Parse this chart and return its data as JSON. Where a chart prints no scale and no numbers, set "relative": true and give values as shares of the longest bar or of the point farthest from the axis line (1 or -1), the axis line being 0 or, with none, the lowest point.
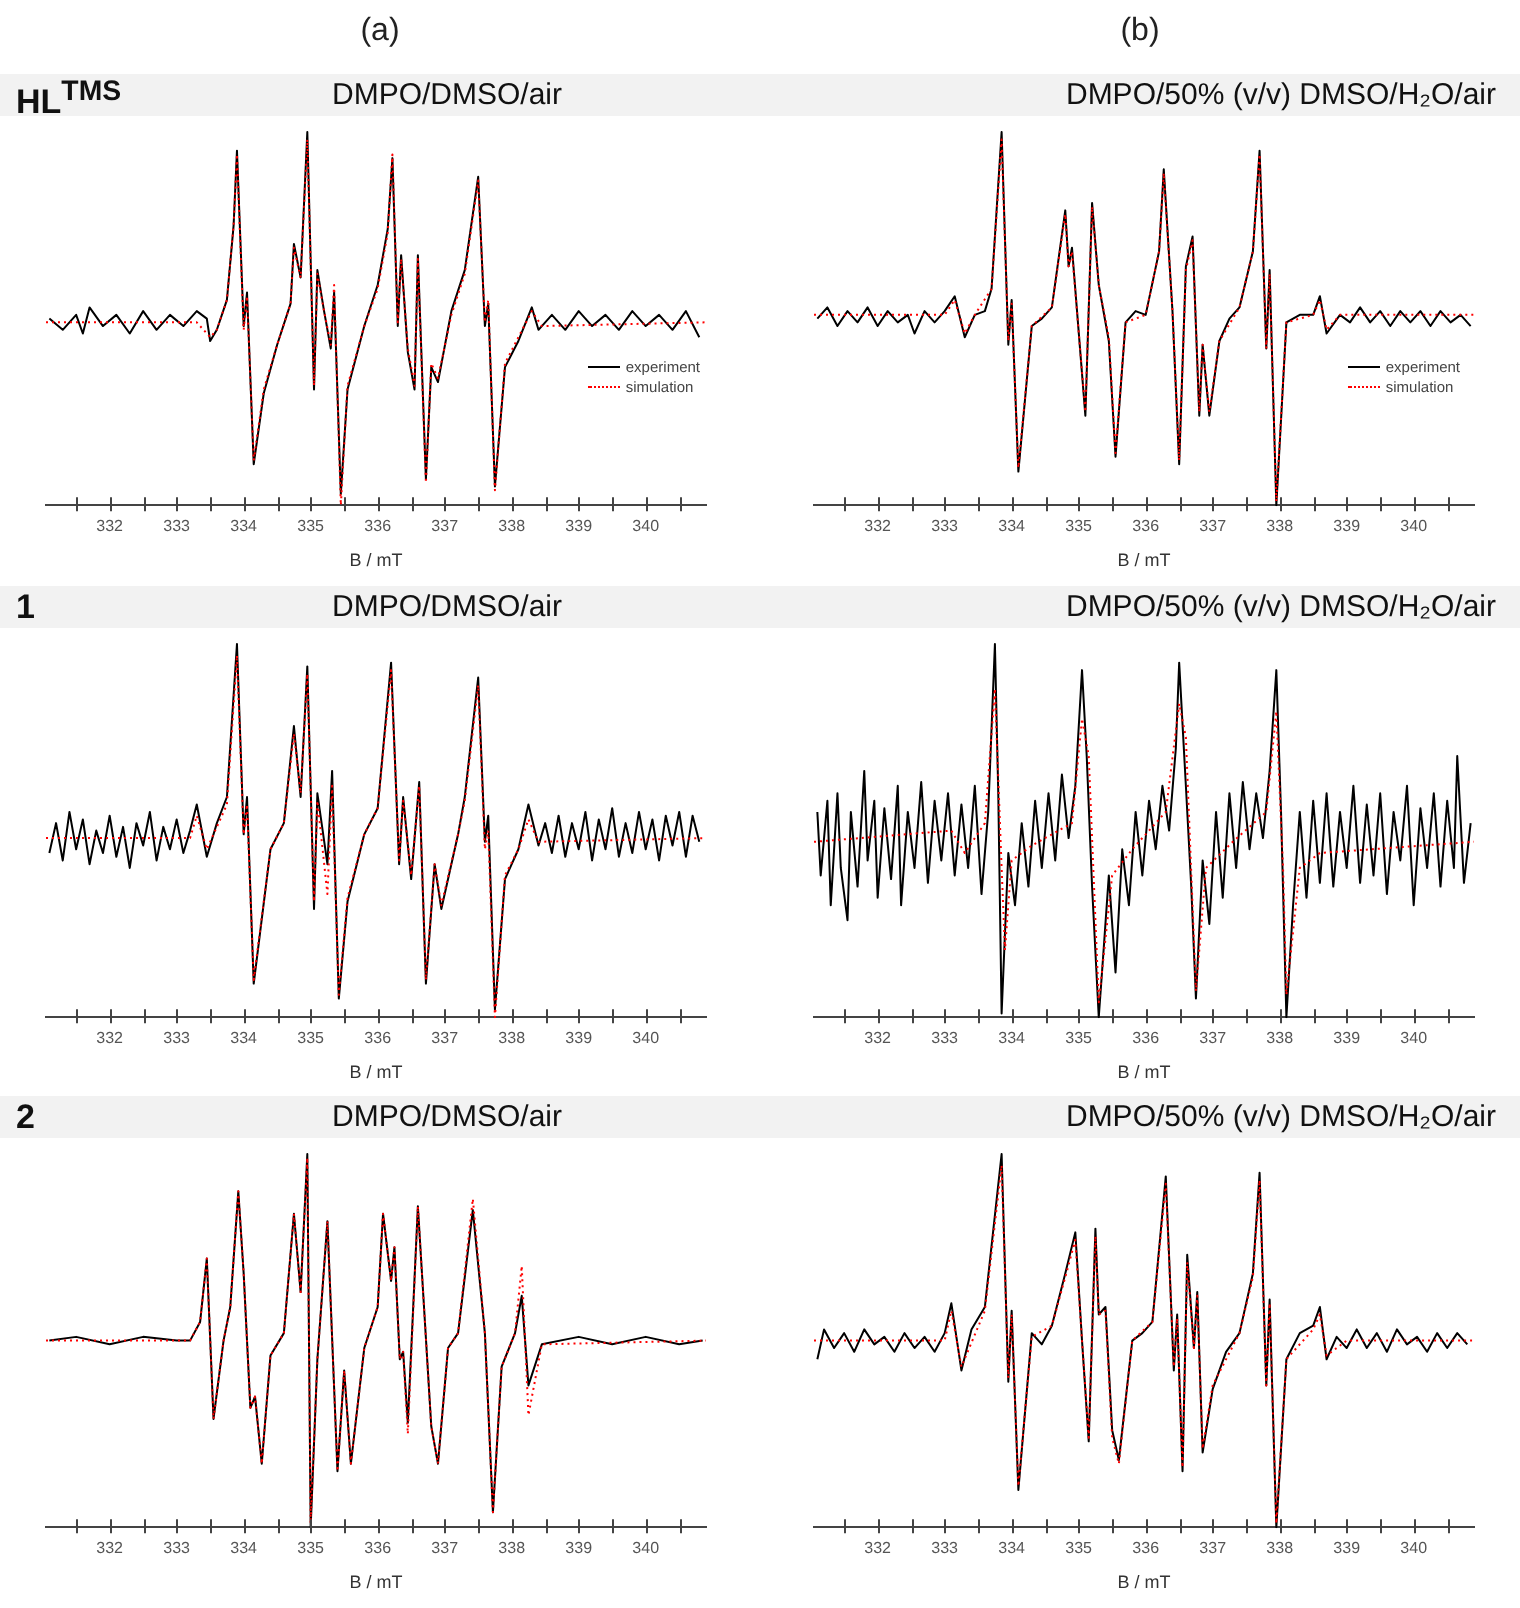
{
  "chart_data": [
    {
      "type": "line",
      "title": "HL$^{TMS}$",
      "subtitle": "DMPO/DMSO/air",
      "xlabel": "B / mT",
      "annotations": [
        "(a)"
      ],
      "relative": true,
      "xlim": [
        331.05,
        340.9
      ],
      "xticks": [
        {
          "value": 331.5,
          "label": null
        },
        332,
        {
          "value": 332.5,
          "label": null
        },
        333,
        {
          "value": 333.5,
          "label": null
        },
        334,
        {
          "value": 334.5,
          "label": null
        },
        335,
        {
          "value": 335.5,
          "label": null
        },
        336,
        {
          "value": 336.5,
          "label": null
        },
        337,
        {
          "value": 337.5,
          "label": null
        },
        338,
        {
          "value": 338.5,
          "label": null
        },
        339,
        {
          "value": 339.5,
          "label": null
        },
        340,
        {
          "value": 340.5,
          "label": null
        }
      ],
      "legend": "right",
      "marker": "none",
      "series": [
        {
          "name": "experiment",
          "color": "#000000",
          "line_style": "solid",
          "x": [
            331.1,
            331.3,
            331.5,
            331.6,
            331.7,
            331.9,
            332.1,
            332.3,
            332.5,
            332.7,
            332.9,
            333.1,
            333.3,
            333.45,
            333.5,
            333.6,
            333.75,
            333.85,
            333.9,
            334.0,
            334.05,
            334.15,
            334.3,
            334.5,
            334.7,
            334.75,
            334.85,
            334.95,
            335.05,
            335.1,
            335.2,
            335.3,
            335.35,
            335.45,
            335.55,
            335.8,
            336.0,
            336.15,
            336.22,
            336.3,
            336.35,
            336.45,
            336.55,
            336.6,
            336.72,
            336.8,
            336.9,
            337.1,
            337.3,
            337.5,
            337.6,
            337.65,
            337.75,
            337.9,
            338.1,
            338.3,
            338.4,
            338.6,
            338.8,
            339.0,
            339.2,
            339.4,
            339.6,
            339.8,
            340.0,
            340.2,
            340.4,
            340.6,
            340.8
          ],
          "values": [
            0.5,
            0.47,
            0.51,
            0.46,
            0.53,
            0.48,
            0.51,
            0.46,
            0.52,
            0.47,
            0.51,
            0.48,
            0.52,
            0.5,
            0.44,
            0.47,
            0.55,
            0.75,
            0.95,
            0.48,
            0.57,
            0.11,
            0.3,
            0.43,
            0.54,
            0.7,
            0.61,
            1.0,
            0.31,
            0.63,
            0.52,
            0.42,
            0.57,
            0.03,
            0.31,
            0.48,
            0.59,
            0.74,
            0.93,
            0.48,
            0.67,
            0.41,
            0.31,
            0.67,
            0.07,
            0.37,
            0.33,
            0.52,
            0.63,
            0.88,
            0.48,
            0.54,
            0.05,
            0.37,
            0.44,
            0.53,
            0.47,
            0.51,
            0.47,
            0.52,
            0.48,
            0.51,
            0.47,
            0.52,
            0.48,
            0.51,
            0.47,
            0.52,
            0.45
          ]
        },
        {
          "name": "simulation",
          "color": "#ff0000",
          "line_style": "dotted",
          "x": [
            331.05,
            333.3,
            333.5,
            333.6,
            333.75,
            333.85,
            333.9,
            334.0,
            334.05,
            334.15,
            334.3,
            334.5,
            334.7,
            334.75,
            334.85,
            334.95,
            335.05,
            335.1,
            335.2,
            335.3,
            335.35,
            335.45,
            335.55,
            335.8,
            336.0,
            336.15,
            336.22,
            336.3,
            336.35,
            336.45,
            336.55,
            336.6,
            336.72,
            336.8,
            336.9,
            337.1,
            337.3,
            337.5,
            337.6,
            337.65,
            337.75,
            337.9,
            338.1,
            338.3,
            338.45,
            340.9
          ],
          "values": [
            0.49,
            0.49,
            0.45,
            0.47,
            0.55,
            0.75,
            0.94,
            0.47,
            0.56,
            0.12,
            0.31,
            0.43,
            0.54,
            0.69,
            0.61,
            0.98,
            0.32,
            0.62,
            0.52,
            0.43,
            0.59,
            0.0,
            0.32,
            0.48,
            0.58,
            0.73,
            0.94,
            0.49,
            0.66,
            0.42,
            0.32,
            0.66,
            0.06,
            0.38,
            0.34,
            0.51,
            0.62,
            0.87,
            0.49,
            0.55,
            0.04,
            0.38,
            0.45,
            0.52,
            0.48,
            0.49
          ]
        }
      ]
    },
    {
      "type": "line",
      "subtitle": "DMPO/50% (v/v) DMSO/H₂O/air",
      "xlabel": "B / mT",
      "annotations": [
        "(b)"
      ],
      "relative": true,
      "xlim": [
        331.05,
        340.9
      ],
      "xticks": [
        {
          "value": 331.5,
          "label": null
        },
        332,
        {
          "value": 332.5,
          "label": null
        },
        333,
        {
          "value": 333.5,
          "label": null
        },
        334,
        {
          "value": 334.5,
          "label": null
        },
        335,
        {
          "value": 335.5,
          "label": null
        },
        336,
        {
          "value": 336.5,
          "label": null
        },
        337,
        {
          "value": 337.5,
          "label": null
        },
        338,
        {
          "value": 338.5,
          "label": null
        },
        339,
        {
          "value": 339.5,
          "label": null
        },
        340,
        {
          "value": 340.5,
          "label": null
        }
      ],
      "legend": "right",
      "marker": "none",
      "series": [
        {
          "name": "experiment",
          "color": "#000000",
          "line_style": "solid",
          "x": [
            331.1,
            331.25,
            331.4,
            331.55,
            331.7,
            331.85,
            332.0,
            332.15,
            332.3,
            332.45,
            332.55,
            332.7,
            332.85,
            333.0,
            333.15,
            333.3,
            333.45,
            333.6,
            333.7,
            333.85,
            333.95,
            334.0,
            334.1,
            334.3,
            334.45,
            334.6,
            334.8,
            334.85,
            334.9,
            335.1,
            335.2,
            335.3,
            335.45,
            335.55,
            335.7,
            335.85,
            336.0,
            336.2,
            336.27,
            336.4,
            336.5,
            336.6,
            336.7,
            336.8,
            336.85,
            336.95,
            337.1,
            337.25,
            337.4,
            337.6,
            337.7,
            337.8,
            337.85,
            337.95,
            338.1,
            338.3,
            338.5,
            338.6,
            338.7,
            338.9,
            339.05,
            339.2,
            339.35,
            339.5,
            339.65,
            339.8,
            339.95,
            340.1,
            340.25,
            340.4,
            340.55,
            340.7,
            340.85
          ],
          "values": [
            0.5,
            0.53,
            0.48,
            0.52,
            0.49,
            0.53,
            0.48,
            0.52,
            0.49,
            0.51,
            0.46,
            0.52,
            0.49,
            0.52,
            0.56,
            0.45,
            0.51,
            0.52,
            0.58,
            1.0,
            0.43,
            0.55,
            0.09,
            0.48,
            0.5,
            0.53,
            0.79,
            0.64,
            0.69,
            0.24,
            0.81,
            0.59,
            0.44,
            0.13,
            0.49,
            0.52,
            0.51,
            0.68,
            0.9,
            0.52,
            0.11,
            0.64,
            0.72,
            0.24,
            0.43,
            0.24,
            0.44,
            0.5,
            0.53,
            0.68,
            0.95,
            0.42,
            0.63,
            0.0,
            0.49,
            0.51,
            0.51,
            0.56,
            0.46,
            0.51,
            0.49,
            0.53,
            0.49,
            0.52,
            0.48,
            0.52,
            0.49,
            0.52,
            0.48,
            0.52,
            0.49,
            0.51,
            0.48
          ]
        },
        {
          "name": "simulation",
          "color": "#ff0000",
          "line_style": "dotted",
          "x": [
            331.05,
            333.0,
            333.15,
            333.3,
            333.45,
            333.7,
            333.85,
            333.95,
            334.0,
            334.1,
            334.3,
            334.6,
            334.8,
            334.85,
            334.9,
            335.1,
            335.2,
            335.3,
            335.45,
            335.55,
            335.7,
            336.0,
            336.2,
            336.27,
            336.4,
            336.5,
            336.6,
            336.7,
            336.8,
            336.85,
            336.95,
            337.1,
            337.4,
            337.6,
            337.7,
            337.8,
            337.85,
            337.95,
            338.1,
            338.5,
            338.6,
            338.7,
            338.9,
            340.9
          ],
          "values": [
            0.51,
            0.51,
            0.55,
            0.46,
            0.51,
            0.58,
            0.98,
            0.44,
            0.54,
            0.1,
            0.48,
            0.53,
            0.78,
            0.64,
            0.68,
            0.25,
            0.8,
            0.59,
            0.45,
            0.14,
            0.49,
            0.51,
            0.68,
            0.89,
            0.52,
            0.12,
            0.63,
            0.71,
            0.25,
            0.43,
            0.25,
            0.44,
            0.53,
            0.68,
            0.94,
            0.42,
            0.62,
            0.01,
            0.49,
            0.51,
            0.55,
            0.47,
            0.51,
            0.51
          ]
        }
      ]
    },
    {
      "type": "line",
      "title": "1",
      "subtitle": "DMPO/DMSO/air",
      "xlabel": "B / mT",
      "relative": true,
      "xlim": [
        331.05,
        340.9
      ],
      "xticks": [
        {
          "value": 331.5,
          "label": null
        },
        332,
        {
          "value": 332.5,
          "label": null
        },
        333,
        {
          "value": 333.5,
          "label": null
        },
        334,
        {
          "value": 334.5,
          "label": null
        },
        335,
        {
          "value": 335.5,
          "label": null
        },
        336,
        {
          "value": 336.5,
          "label": null
        },
        337,
        {
          "value": 337.5,
          "label": null
        },
        338,
        {
          "value": 338.5,
          "label": null
        },
        339,
        {
          "value": 339.5,
          "label": null
        },
        340,
        {
          "value": 340.5,
          "label": null
        }
      ],
      "marker": "none",
      "series": [
        {
          "color": "#000000",
          "line_style": "solid",
          "x": [
            331.1,
            331.2,
            331.3,
            331.4,
            331.5,
            331.6,
            331.7,
            331.8,
            331.9,
            332.0,
            332.1,
            332.2,
            332.3,
            332.4,
            332.5,
            332.6,
            332.7,
            332.8,
            332.9,
            333.0,
            333.1,
            333.2,
            333.3,
            333.45,
            333.6,
            333.75,
            333.9,
            334.0,
            334.05,
            334.15,
            334.4,
            334.6,
            334.75,
            334.85,
            334.95,
            335.05,
            335.1,
            335.25,
            335.32,
            335.42,
            335.55,
            335.8,
            336.0,
            336.2,
            336.32,
            336.38,
            336.5,
            336.62,
            336.72,
            336.85,
            336.95,
            337.2,
            337.3,
            337.5,
            337.6,
            337.65,
            337.75,
            337.9,
            338.1,
            338.25,
            338.4,
            338.5,
            338.6,
            338.7,
            338.8,
            338.9,
            339.0,
            339.1,
            339.2,
            339.3,
            339.4,
            339.5,
            339.6,
            339.7,
            339.8,
            339.9,
            340.0,
            340.1,
            340.2,
            340.3,
            340.4,
            340.5,
            340.6,
            340.7,
            340.8
          ],
          "values": [
            0.44,
            0.52,
            0.42,
            0.55,
            0.45,
            0.53,
            0.41,
            0.5,
            0.44,
            0.54,
            0.43,
            0.51,
            0.4,
            0.52,
            0.46,
            0.55,
            0.42,
            0.51,
            0.45,
            0.53,
            0.44,
            0.5,
            0.57,
            0.43,
            0.52,
            0.59,
            1.0,
            0.49,
            0.59,
            0.09,
            0.45,
            0.52,
            0.78,
            0.59,
            0.94,
            0.29,
            0.6,
            0.41,
            0.66,
            0.05,
            0.31,
            0.49,
            0.56,
            0.95,
            0.41,
            0.59,
            0.37,
            0.63,
            0.09,
            0.41,
            0.29,
            0.49,
            0.59,
            0.91,
            0.47,
            0.54,
            0.02,
            0.37,
            0.45,
            0.57,
            0.46,
            0.52,
            0.44,
            0.54,
            0.43,
            0.52,
            0.45,
            0.55,
            0.42,
            0.53,
            0.45,
            0.56,
            0.43,
            0.52,
            0.44,
            0.55,
            0.45,
            0.53,
            0.42,
            0.54,
            0.46,
            0.55,
            0.43,
            0.54,
            0.47
          ]
        },
        {
          "color": "#ff0000",
          "line_style": "dotted",
          "x": [
            331.05,
            333.2,
            333.3,
            333.45,
            333.75,
            333.9,
            334.0,
            334.05,
            334.15,
            334.4,
            334.6,
            334.75,
            334.85,
            334.95,
            335.05,
            335.1,
            335.25,
            335.32,
            335.42,
            335.55,
            335.8,
            336.0,
            336.2,
            336.32,
            336.38,
            336.5,
            336.62,
            336.72,
            336.85,
            336.95,
            337.2,
            337.3,
            337.5,
            337.6,
            337.65,
            337.75,
            337.9,
            338.1,
            338.25,
            338.4,
            340.9
          ],
          "values": [
            0.48,
            0.48,
            0.54,
            0.45,
            0.57,
            0.97,
            0.49,
            0.57,
            0.1,
            0.45,
            0.52,
            0.76,
            0.6,
            0.92,
            0.31,
            0.58,
            0.33,
            0.62,
            0.06,
            0.32,
            0.49,
            0.56,
            0.93,
            0.42,
            0.58,
            0.38,
            0.62,
            0.1,
            0.41,
            0.3,
            0.49,
            0.58,
            0.89,
            0.45,
            0.5,
            0.0,
            0.38,
            0.45,
            0.53,
            0.47,
            0.48
          ]
        }
      ]
    },
    {
      "type": "line",
      "subtitle": "DMPO/50% (v/v) DMSO/H₂O/air",
      "xlabel": "B / mT",
      "relative": true,
      "xlim": [
        331.05,
        340.9
      ],
      "xticks": [
        {
          "value": 331.5,
          "label": null
        },
        332,
        {
          "value": 332.5,
          "label": null
        },
        333,
        {
          "value": 333.5,
          "label": null
        },
        334,
        {
          "value": 334.5,
          "label": null
        },
        335,
        {
          "value": 335.5,
          "label": null
        },
        336,
        {
          "value": 336.5,
          "label": null
        },
        337,
        {
          "value": 337.5,
          "label": null
        },
        338,
        {
          "value": 338.5,
          "label": null
        },
        339,
        {
          "value": 339.5,
          "label": null
        },
        340,
        {
          "value": 340.5,
          "label": null
        }
      ],
      "marker": "none",
      "series": [
        {
          "color": "#000000",
          "line_style": "solid",
          "x": [
            331.1,
            331.15,
            331.25,
            331.3,
            331.4,
            331.45,
            331.55,
            331.6,
            331.7,
            331.8,
            331.85,
            331.95,
            332.0,
            332.1,
            332.2,
            332.3,
            332.35,
            332.45,
            332.55,
            332.65,
            332.75,
            332.85,
            332.95,
            333.05,
            333.15,
            333.25,
            333.35,
            333.45,
            333.55,
            333.65,
            333.75,
            333.8,
            333.85,
            333.95,
            334.05,
            334.15,
            334.25,
            334.35,
            334.45,
            334.55,
            334.65,
            334.75,
            334.85,
            334.95,
            335.05,
            335.12,
            335.2,
            335.3,
            335.38,
            335.45,
            335.55,
            335.65,
            335.75,
            335.85,
            335.95,
            336.05,
            336.15,
            336.25,
            336.35,
            336.45,
            336.5,
            336.6,
            336.68,
            336.75,
            336.85,
            336.95,
            337.05,
            337.15,
            337.25,
            337.35,
            337.45,
            337.55,
            337.65,
            337.75,
            337.85,
            337.95,
            338.02,
            338.1,
            338.2,
            338.3,
            338.4,
            338.5,
            338.6,
            338.7,
            338.8,
            338.9,
            339.0,
            339.1,
            339.2,
            339.3,
            339.4,
            339.5,
            339.6,
            339.7,
            339.8,
            339.9,
            340.0,
            340.1,
            340.2,
            340.3,
            340.4,
            340.5,
            340.6,
            340.65,
            340.75,
            340.85
          ],
          "values": [
            0.55,
            0.38,
            0.58,
            0.3,
            0.6,
            0.4,
            0.26,
            0.55,
            0.35,
            0.66,
            0.42,
            0.58,
            0.32,
            0.56,
            0.37,
            0.62,
            0.3,
            0.55,
            0.4,
            0.63,
            0.36,
            0.58,
            0.42,
            0.6,
            0.38,
            0.57,
            0.4,
            0.62,
            0.33,
            0.55,
            1.0,
            0.6,
            0.01,
            0.44,
            0.3,
            0.52,
            0.35,
            0.58,
            0.4,
            0.6,
            0.42,
            0.65,
            0.48,
            0.62,
            0.93,
            0.7,
            0.35,
            0.0,
            0.2,
            0.38,
            0.12,
            0.45,
            0.3,
            0.55,
            0.38,
            0.58,
            0.45,
            0.62,
            0.5,
            0.72,
            0.95,
            0.62,
            0.35,
            0.05,
            0.42,
            0.25,
            0.55,
            0.32,
            0.6,
            0.4,
            0.63,
            0.45,
            0.6,
            0.48,
            0.66,
            0.93,
            0.55,
            0.0,
            0.3,
            0.55,
            0.32,
            0.58,
            0.36,
            0.6,
            0.35,
            0.55,
            0.4,
            0.62,
            0.36,
            0.57,
            0.38,
            0.6,
            0.33,
            0.55,
            0.42,
            0.62,
            0.3,
            0.56,
            0.4,
            0.6,
            0.35,
            0.58,
            0.4,
            0.7,
            0.36,
            0.52
          ]
        },
        {
          "color": "#ff0000",
          "line_style": "dotted",
          "x": [
            331.05,
            333.1,
            333.3,
            333.6,
            333.75,
            333.85,
            333.9,
            334.0,
            334.3,
            334.9,
            335.05,
            335.15,
            335.3,
            335.5,
            335.8,
            336.3,
            336.5,
            336.6,
            336.75,
            336.9,
            337.3,
            337.8,
            337.95,
            338.05,
            338.1,
            338.3,
            338.6,
            340.9
          ],
          "values": [
            0.47,
            0.5,
            0.44,
            0.52,
            0.88,
            0.4,
            0.18,
            0.42,
            0.46,
            0.52,
            0.8,
            0.7,
            0.04,
            0.38,
            0.45,
            0.55,
            0.84,
            0.75,
            0.07,
            0.4,
            0.47,
            0.55,
            0.82,
            0.4,
            0.06,
            0.4,
            0.44,
            0.47
          ]
        }
      ]
    },
    {
      "type": "line",
      "title": "2",
      "subtitle": "DMPO/DMSO/air",
      "xlabel": "B / mT",
      "relative": true,
      "xlim": [
        331.05,
        340.9
      ],
      "xticks": [
        {
          "value": 331.5,
          "label": null
        },
        332,
        {
          "value": 332.5,
          "label": null
        },
        333,
        {
          "value": 333.5,
          "label": null
        },
        334,
        {
          "value": 334.5,
          "label": null
        },
        335,
        {
          "value": 335.5,
          "label": null
        },
        336,
        {
          "value": 336.5,
          "label": null
        },
        337,
        {
          "value": 337.5,
          "label": null
        },
        338,
        {
          "value": 338.5,
          "label": null
        },
        339,
        {
          "value": 339.5,
          "label": null
        },
        340,
        {
          "value": 340.5,
          "label": null
        }
      ],
      "marker": "none",
      "series": [
        {
          "color": "#000000",
          "line_style": "solid",
          "x": [
            331.1,
            331.5,
            332.0,
            332.5,
            333.0,
            333.2,
            333.35,
            333.45,
            333.55,
            333.7,
            333.8,
            333.92,
            334.0,
            334.1,
            334.17,
            334.27,
            334.4,
            334.6,
            334.75,
            334.85,
            334.95,
            335.0,
            335.1,
            335.25,
            335.4,
            335.5,
            335.6,
            335.8,
            336.0,
            336.08,
            336.2,
            336.25,
            336.33,
            336.38,
            336.45,
            336.6,
            336.8,
            336.9,
            337.05,
            337.2,
            337.42,
            337.6,
            337.72,
            337.85,
            338.05,
            338.15,
            338.25,
            338.45,
            339.0,
            339.5,
            340.0,
            340.5,
            340.85
          ],
          "values": [
            0.5,
            0.51,
            0.49,
            0.51,
            0.5,
            0.5,
            0.55,
            0.72,
            0.29,
            0.5,
            0.59,
            0.9,
            0.68,
            0.32,
            0.35,
            0.17,
            0.46,
            0.52,
            0.84,
            0.63,
            1.0,
            0.0,
            0.45,
            0.82,
            0.15,
            0.42,
            0.17,
            0.48,
            0.59,
            0.84,
            0.66,
            0.75,
            0.45,
            0.47,
            0.28,
            0.86,
            0.27,
            0.17,
            0.48,
            0.52,
            0.85,
            0.52,
            0.04,
            0.43,
            0.52,
            0.62,
            0.38,
            0.49,
            0.51,
            0.49,
            0.51,
            0.49,
            0.5
          ]
        },
        {
          "color": "#ff0000",
          "line_style": "dotted",
          "x": [
            331.05,
            333.2,
            333.35,
            333.45,
            333.55,
            333.7,
            333.8,
            333.92,
            334.0,
            334.1,
            334.17,
            334.27,
            334.4,
            334.6,
            334.75,
            334.85,
            334.95,
            335.0,
            335.1,
            335.25,
            335.4,
            335.5,
            335.6,
            335.8,
            336.0,
            336.08,
            336.2,
            336.25,
            336.33,
            336.38,
            336.45,
            336.6,
            336.8,
            336.9,
            337.05,
            337.2,
            337.42,
            337.6,
            337.72,
            337.85,
            338.05,
            338.15,
            338.25,
            338.45,
            340.9
          ],
          "values": [
            0.5,
            0.5,
            0.55,
            0.72,
            0.29,
            0.5,
            0.59,
            0.9,
            0.68,
            0.32,
            0.35,
            0.17,
            0.46,
            0.52,
            0.84,
            0.63,
            0.99,
            0.01,
            0.45,
            0.82,
            0.15,
            0.42,
            0.17,
            0.48,
            0.59,
            0.84,
            0.66,
            0.75,
            0.45,
            0.47,
            0.25,
            0.86,
            0.27,
            0.17,
            0.48,
            0.52,
            0.88,
            0.52,
            0.04,
            0.43,
            0.52,
            0.7,
            0.3,
            0.49,
            0.5
          ]
        }
      ]
    },
    {
      "type": "line",
      "subtitle": "DMPO/50% (v/v) DMSO/H₂O/air",
      "xlabel": "B / mT",
      "relative": true,
      "xlim": [
        331.05,
        340.9
      ],
      "xticks": [
        {
          "value": 331.5,
          "label": null
        },
        332,
        {
          "value": 332.5,
          "label": null
        },
        333,
        {
          "value": 333.5,
          "label": null
        },
        334,
        {
          "value": 334.5,
          "label": null
        },
        335,
        {
          "value": 335.5,
          "label": null
        },
        336,
        {
          "value": 336.5,
          "label": null
        },
        337,
        {
          "value": 337.5,
          "label": null
        },
        338,
        {
          "value": 338.5,
          "label": null
        },
        339,
        {
          "value": 339.5,
          "label": null
        },
        340,
        {
          "value": 340.5,
          "label": null
        }
      ],
      "marker": "none",
      "series": [
        {
          "color": "#000000",
          "line_style": "solid",
          "x": [
            331.1,
            331.2,
            331.35,
            331.5,
            331.65,
            331.8,
            331.95,
            332.1,
            332.25,
            332.4,
            332.55,
            332.7,
            332.85,
            333.0,
            333.1,
            333.25,
            333.4,
            333.6,
            333.85,
            333.95,
            334.0,
            334.1,
            334.3,
            334.45,
            334.6,
            334.8,
            334.95,
            335.05,
            335.15,
            335.25,
            335.3,
            335.4,
            335.5,
            335.6,
            335.8,
            335.95,
            336.1,
            336.3,
            336.42,
            336.47,
            336.55,
            336.62,
            336.72,
            336.77,
            336.85,
            337.0,
            337.2,
            337.4,
            337.6,
            337.7,
            337.8,
            337.85,
            337.95,
            338.1,
            338.3,
            338.5,
            338.6,
            338.7,
            338.85,
            339.0,
            339.15,
            339.3,
            339.45,
            339.6,
            339.75,
            339.9,
            340.05,
            340.2,
            340.35,
            340.5,
            340.65,
            340.8
          ],
          "values": [
            0.45,
            0.53,
            0.48,
            0.52,
            0.47,
            0.53,
            0.49,
            0.51,
            0.47,
            0.52,
            0.48,
            0.51,
            0.47,
            0.52,
            0.6,
            0.42,
            0.53,
            0.59,
            1.0,
            0.39,
            0.58,
            0.1,
            0.52,
            0.49,
            0.54,
            0.68,
            0.79,
            0.5,
            0.23,
            0.8,
            0.57,
            0.59,
            0.26,
            0.18,
            0.5,
            0.52,
            0.55,
            0.94,
            0.42,
            0.57,
            0.15,
            0.73,
            0.48,
            0.63,
            0.2,
            0.37,
            0.47,
            0.52,
            0.68,
            0.95,
            0.38,
            0.61,
            0.0,
            0.45,
            0.52,
            0.54,
            0.59,
            0.45,
            0.51,
            0.48,
            0.53,
            0.48,
            0.52,
            0.47,
            0.53,
            0.49,
            0.51,
            0.47,
            0.52,
            0.48,
            0.52,
            0.49
          ]
        },
        {
          "color": "#ff0000",
          "line_style": "dotted",
          "x": [
            331.05,
            333.0,
            333.1,
            333.25,
            333.6,
            333.85,
            333.95,
            334.0,
            334.1,
            334.3,
            334.6,
            334.8,
            334.95,
            335.05,
            335.15,
            335.25,
            335.3,
            335.4,
            335.5,
            335.6,
            335.8,
            336.1,
            336.3,
            336.42,
            336.47,
            336.55,
            336.62,
            336.72,
            336.77,
            336.85,
            337.0,
            337.4,
            337.6,
            337.7,
            337.8,
            337.85,
            337.95,
            338.1,
            338.5,
            338.6,
            338.7,
            339.0,
            340.9
          ],
          "values": [
            0.5,
            0.5,
            0.58,
            0.43,
            0.58,
            0.97,
            0.4,
            0.57,
            0.11,
            0.51,
            0.54,
            0.67,
            0.77,
            0.5,
            0.24,
            0.78,
            0.57,
            0.58,
            0.24,
            0.17,
            0.5,
            0.55,
            0.92,
            0.43,
            0.56,
            0.16,
            0.71,
            0.48,
            0.62,
            0.21,
            0.38,
            0.52,
            0.67,
            0.93,
            0.38,
            0.6,
            0.01,
            0.45,
            0.53,
            0.57,
            0.46,
            0.5,
            0.5
          ]
        }
      ]
    }
  ]
}
